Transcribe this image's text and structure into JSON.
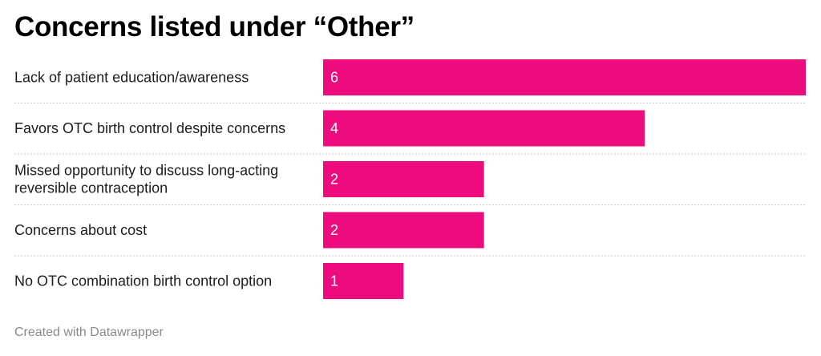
{
  "title": "Concerns listed under “Other”",
  "credit": "Created with Datawrapper",
  "colors": {
    "bar": "#ed0c7e",
    "value_label": "#ffffff",
    "divider": "#c8c8c8"
  },
  "chart_data": {
    "type": "bar",
    "orientation": "horizontal",
    "categories": [
      [
        "Lack of patient education/awareness"
      ],
      [
        "Favors OTC birth control despite concerns"
      ],
      [
        "Missed opportunity to discuss long-acting",
        "reversible contraception"
      ],
      [
        "Concerns about cost"
      ],
      [
        "No OTC combination birth control option"
      ]
    ],
    "values": [
      6,
      4,
      2,
      2,
      1
    ],
    "xlim": [
      0,
      6
    ],
    "data_labels": true,
    "grid": false
  }
}
